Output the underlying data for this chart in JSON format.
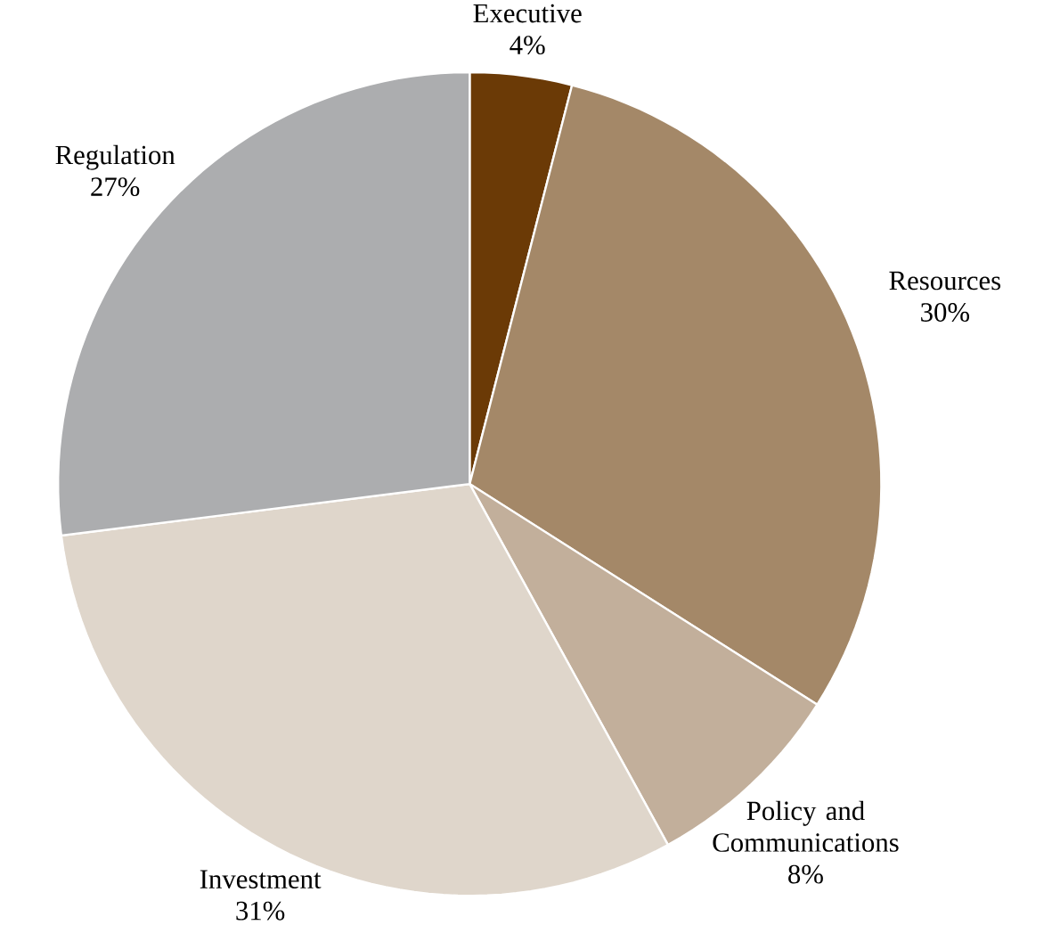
{
  "chart_data": {
    "type": "pie",
    "categories": [
      "Executive",
      "Resources",
      "Policy and Communications",
      "Investment",
      "Regulation"
    ],
    "values": [
      4,
      30,
      8,
      31,
      27
    ],
    "value_labels": [
      "4%",
      "30%",
      "8%",
      "31%",
      "27%"
    ],
    "colors": [
      "#6b3a06",
      "#a48868",
      "#c2af9b",
      "#dfd6cb",
      "#acadaf"
    ]
  }
}
